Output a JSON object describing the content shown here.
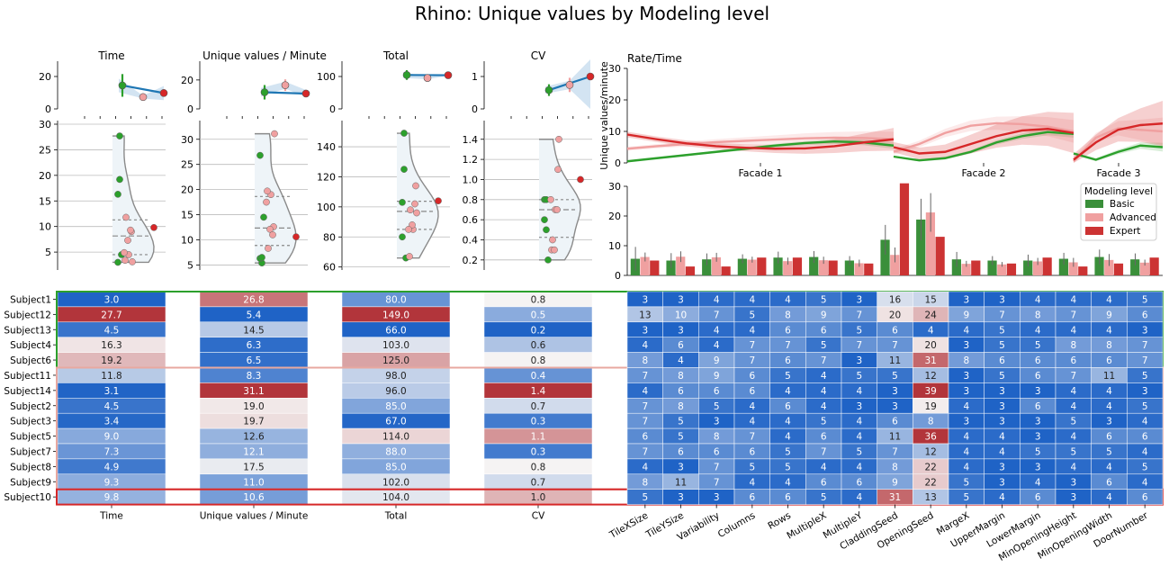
{
  "title": "Rhino: Unique values by Modeling level",
  "colors": {
    "basic": "#2ca02c",
    "advanced": "#f0a0a0",
    "expert": "#d62728",
    "basic_bar": "#3a8f3a",
    "expert_bar": "#cc3333",
    "violin_fill": "#eef4f8",
    "violin_edge": "#8a8a8a",
    "heat_low": "#1f63c6",
    "heat_mid": "#f5f3f3",
    "heat_high": "#b2353b",
    "band_basic": "#2ca02c",
    "band_advanced": "#e8a8a0",
    "band_expert": "#d62728"
  },
  "chart_data": [
    {
      "type": "scatter",
      "panel": "trend",
      "metrics": [
        {
          "title": "Time",
          "ylim": [
            0,
            25
          ],
          "yticks": [
            0,
            20
          ],
          "points": [
            {
              "level": "Basic",
              "y": 14.5,
              "err": 7
            },
            {
              "level": "Advanced",
              "y": 7.3,
              "err": 1.5
            },
            {
              "level": "Expert",
              "y": 9.8,
              "err": 0
            }
          ]
        },
        {
          "title": "Unique values / Minute",
          "ylim": [
            0,
            28
          ],
          "yticks": [
            0,
            20
          ],
          "points": [
            {
              "level": "Basic",
              "y": 11.5,
              "err": 5
            },
            {
              "level": "Advanced",
              "y": 16.4,
              "err": 4
            },
            {
              "level": "Expert",
              "y": 10.6,
              "err": 0
            }
          ]
        },
        {
          "title": "Total",
          "ylim": [
            0,
            125
          ],
          "yticks": [
            0,
            100
          ],
          "points": [
            {
              "level": "Basic",
              "y": 104.6,
              "err": 15
            },
            {
              "level": "Advanced",
              "y": 95.4,
              "err": 6
            },
            {
              "level": "Expert",
              "y": 104.0,
              "err": 0
            }
          ]
        },
        {
          "title": "CV",
          "ylim": [
            0,
            1.25
          ],
          "yticks": [
            0,
            1
          ],
          "points": [
            {
              "level": "Basic",
              "y": 0.58,
              "err": 0.18
            },
            {
              "level": "Advanced",
              "y": 0.74,
              "err": 0.22
            },
            {
              "level": "Expert",
              "y": 1.0,
              "err": 0
            }
          ]
        }
      ]
    },
    {
      "type": "scatter",
      "panel": "violin",
      "axes": [
        {
          "ylim": [
            1.5,
            30
          ],
          "yticks": [
            5,
            10,
            15,
            20,
            25,
            30
          ]
        },
        {
          "ylim": [
            4,
            33
          ],
          "yticks": [
            5,
            10,
            15,
            20,
            25,
            30
          ]
        },
        {
          "ylim": [
            58,
            155
          ],
          "yticks": [
            60,
            80,
            100,
            120,
            140
          ]
        },
        {
          "ylim": [
            0.1,
            1.55
          ],
          "yticks": [
            0.2,
            0.4,
            0.6,
            0.8,
            1.0,
            1.2,
            1.4
          ]
        }
      ]
    },
    {
      "type": "line",
      "panel": "rate",
      "title": "Rate/Time",
      "ylabel": "Unique values/minute",
      "ylim": [
        0,
        30
      ],
      "yticks": [
        0,
        10,
        20,
        30
      ],
      "facades": [
        "Facade 1",
        "Facade 2",
        "Facade 3"
      ],
      "series": [
        {
          "name": "Basic",
          "facades": [
            [
              0.5,
              1.5,
              2.5,
              3.5,
              4.5,
              5.5,
              6.3,
              6.8,
              6.5,
              5.5
            ],
            [
              2.0,
              0.8,
              1.5,
              3.5,
              6.5,
              8.5,
              9.8,
              9.2
            ],
            [
              3.0,
              1.0,
              3.5,
              5.5,
              5.0
            ]
          ]
        },
        {
          "name": "Advanced",
          "facades": [
            [
              4.5,
              5.3,
              6.0,
              6.6,
              7.0,
              7.4,
              7.8,
              8.0,
              7.9,
              7.5
            ],
            [
              3.5,
              6.0,
              9.5,
              11.8,
              12.6,
              12.3,
              11.5,
              10.0
            ],
            [
              0.5,
              8.0,
              11.0,
              10.5,
              10.0
            ]
          ]
        },
        {
          "name": "Expert",
          "facades": [
            [
              9.0,
              7.5,
              6.2,
              5.3,
              4.8,
              4.5,
              4.6,
              5.3,
              6.5,
              7.5
            ],
            [
              5.0,
              3.0,
              3.5,
              6.0,
              8.5,
              10.3,
              10.8,
              9.5
            ],
            [
              1.0,
              6.5,
              10.5,
              12.0,
              12.5
            ]
          ]
        }
      ]
    },
    {
      "type": "bar",
      "panel": "parameters",
      "ylim": [
        0,
        30
      ],
      "yticks": [
        0,
        10,
        20,
        30
      ],
      "legend_title": "Modeling level",
      "legend_position": "right",
      "categories": [
        "TileXSize",
        "TileYSize",
        "Variability",
        "Columns",
        "Rows",
        "MultipleX",
        "MultipleY",
        "CladdingSeed",
        "OpeningSeed",
        "MargeX",
        "UpperMargin",
        "LowerMargin",
        "MinOpeningHeight",
        "MinOpeningWidth",
        "DoorNumber"
      ],
      "series": [
        {
          "name": "Basic",
          "values": [
            5.6,
            5.0,
            5.4,
            5.6,
            6.0,
            6.2,
            5.0,
            12.0,
            18.8,
            5.4,
            5.0,
            5.0,
            5.6,
            6.2,
            5.4
          ],
          "err": [
            4.0,
            2.5,
            2.0,
            1.5,
            2.0,
            2.0,
            1.5,
            5.0,
            7.0,
            2.5,
            1.5,
            2.0,
            2.0,
            2.5,
            2.0
          ]
        },
        {
          "name": "Advanced",
          "values": [
            6.2,
            6.3,
            6.1,
            5.3,
            4.8,
            5.1,
            4.1,
            6.9,
            21.2,
            3.9,
            3.7,
            4.7,
            4.4,
            5.2,
            4.3
          ],
          "err": [
            1.5,
            1.8,
            1.5,
            1.0,
            1.2,
            1.2,
            1.2,
            2.5,
            6.5,
            1.0,
            0.8,
            1.2,
            1.5,
            2.0,
            1.0
          ]
        },
        {
          "name": "Expert",
          "values": [
            5.0,
            3.0,
            3.0,
            6.0,
            6.0,
            5.0,
            4.0,
            31.0,
            13.0,
            5.0,
            4.0,
            6.0,
            3.0,
            4.0,
            6.0
          ],
          "err": [
            0,
            0,
            0,
            0,
            0,
            0,
            0,
            0,
            0,
            0,
            0,
            0,
            0,
            0,
            0
          ]
        }
      ]
    },
    {
      "type": "heatmap",
      "panel": "metrics-table",
      "columns": [
        "Time",
        "Unique values / Minute",
        "Total",
        "CV"
      ],
      "rows": [
        {
          "subject": "Subject1",
          "group": "Basic",
          "values": [
            3.0,
            26.8,
            80.0,
            0.8
          ]
        },
        {
          "subject": "Subject12",
          "group": "Basic",
          "values": [
            27.7,
            5.4,
            149.0,
            0.5
          ]
        },
        {
          "subject": "Subject13",
          "group": "Basic",
          "values": [
            4.5,
            14.5,
            66.0,
            0.2
          ]
        },
        {
          "subject": "Subject4",
          "group": "Basic",
          "values": [
            16.3,
            6.3,
            103.0,
            0.6
          ]
        },
        {
          "subject": "Subject6",
          "group": "Basic",
          "values": [
            19.2,
            6.5,
            125.0,
            0.8
          ]
        },
        {
          "subject": "Subject11",
          "group": "Advanced",
          "values": [
            11.8,
            8.3,
            98.0,
            0.4
          ]
        },
        {
          "subject": "Subject14",
          "group": "Advanced",
          "values": [
            3.1,
            31.1,
            96.0,
            1.4
          ]
        },
        {
          "subject": "Subject2",
          "group": "Advanced",
          "values": [
            4.5,
            19.0,
            85.0,
            0.7
          ]
        },
        {
          "subject": "Subject3",
          "group": "Advanced",
          "values": [
            3.4,
            19.7,
            67.0,
            0.3
          ]
        },
        {
          "subject": "Subject5",
          "group": "Advanced",
          "values": [
            9.0,
            12.6,
            114.0,
            1.1
          ]
        },
        {
          "subject": "Subject7",
          "group": "Advanced",
          "values": [
            7.3,
            12.1,
            88.0,
            0.3
          ]
        },
        {
          "subject": "Subject8",
          "group": "Advanced",
          "values": [
            4.9,
            17.5,
            85.0,
            0.8
          ]
        },
        {
          "subject": "Subject9",
          "group": "Advanced",
          "values": [
            9.3,
            11.0,
            102.0,
            0.7
          ]
        },
        {
          "subject": "Subject10",
          "group": "Expert",
          "values": [
            9.8,
            10.6,
            104.0,
            1.0
          ]
        }
      ]
    },
    {
      "type": "heatmap",
      "panel": "parameters-table",
      "columns": [
        "TileXSize",
        "TileYSize",
        "Variability",
        "Columns",
        "Rows",
        "MultipleX",
        "MultipleY",
        "CladdingSeed",
        "OpeningSeed",
        "MargeX",
        "UpperMargin",
        "LowerMargin",
        "MinOpeningHeight",
        "MinOpeningWidth",
        "DoorNumber"
      ],
      "rows": [
        [
          3,
          3,
          4,
          4,
          4,
          5,
          3,
          16,
          15,
          3,
          3,
          4,
          4,
          4,
          5
        ],
        [
          13,
          10,
          7,
          5,
          8,
          9,
          7,
          20,
          24,
          9,
          7,
          8,
          7,
          9,
          6
        ],
        [
          3,
          3,
          4,
          4,
          6,
          6,
          5,
          6,
          4,
          4,
          5,
          4,
          4,
          4,
          3
        ],
        [
          4,
          6,
          4,
          7,
          7,
          5,
          7,
          7,
          20,
          3,
          5,
          5,
          8,
          8,
          7
        ],
        [
          8,
          4,
          9,
          7,
          6,
          7,
          3,
          11,
          31,
          8,
          6,
          6,
          6,
          6,
          7
        ],
        [
          7,
          8,
          9,
          6,
          5,
          4,
          5,
          5,
          12,
          3,
          5,
          6,
          7,
          11,
          5
        ],
        [
          4,
          6,
          6,
          6,
          4,
          4,
          4,
          3,
          39,
          3,
          3,
          3,
          4,
          4,
          3
        ],
        [
          7,
          8,
          5,
          4,
          6,
          4,
          3,
          3,
          19,
          4,
          3,
          6,
          4,
          4,
          5
        ],
        [
          7,
          5,
          3,
          4,
          4,
          5,
          4,
          6,
          8,
          3,
          3,
          3,
          5,
          3,
          4
        ],
        [
          6,
          5,
          8,
          7,
          4,
          6,
          4,
          11,
          36,
          4,
          4,
          3,
          4,
          6,
          6
        ],
        [
          7,
          6,
          6,
          6,
          5,
          7,
          5,
          7,
          12,
          4,
          4,
          5,
          5,
          5,
          4
        ],
        [
          4,
          3,
          7,
          5,
          5,
          4,
          4,
          8,
          22,
          4,
          3,
          3,
          4,
          4,
          5
        ],
        [
          8,
          11,
          7,
          4,
          4,
          6,
          6,
          9,
          22,
          5,
          3,
          4,
          3,
          6,
          4
        ],
        [
          5,
          3,
          3,
          6,
          6,
          5,
          4,
          31,
          13,
          5,
          4,
          6,
          3,
          4,
          6
        ]
      ]
    }
  ]
}
